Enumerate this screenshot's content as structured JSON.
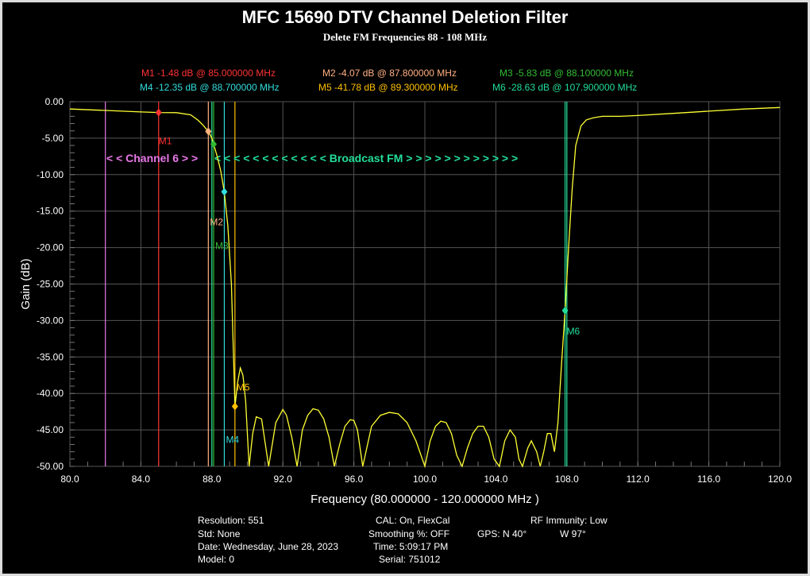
{
  "title": "MFC 15690 DTV Channel Deletion Filter",
  "subtitle": "Delete FM Frequencies 88 - 108 MHz",
  "colors": {
    "background": "#000000",
    "grid": "#555555",
    "trace": "#ffff33",
    "axis_text": "#ffffff",
    "band_channel6": "#e878e8",
    "band_fm": "#22dd99"
  },
  "marker_readouts": [
    {
      "text": "M1  -1.48 dB @ 85.000000 MHz",
      "color": "#ff3333"
    },
    {
      "text": "M2  -4.07 dB @ 87.800000 MHz",
      "color": "#ffb080"
    },
    {
      "text": "M3  -5.83 dB @ 88.100000 MHz",
      "color": "#33bb33"
    },
    {
      "text": "M4  -12.35 dB @ 88.700000 MHz",
      "color": "#33dddd"
    },
    {
      "text": "M5  -41.78 dB @ 89.300000 MHz",
      "color": "#ffc000"
    },
    {
      "text": "M6  -28.63 dB @ 107.900000 MHz",
      "color": "#22dd99"
    }
  ],
  "band_labels": {
    "channel6": "< < Channel 6 > >",
    "fm": "< < < < < < < < < < < < Broadcast FM > > > > > > > > > > > >"
  },
  "chart_data": {
    "type": "line",
    "title": "MFC 15690 DTV Channel Deletion Filter",
    "subtitle": "Delete FM Frequencies 88 - 108 MHz",
    "xlabel": "Frequency (80.000000 - 120.000000 MHz )",
    "ylabel": "Gain (dB)",
    "xlim": [
      80,
      120
    ],
    "ylim": [
      -50,
      0
    ],
    "x_ticks": [
      "80.0",
      "84.0",
      "88.0",
      "92.0",
      "96.0",
      "100.0",
      "104.0",
      "108.0",
      "112.0",
      "116.0",
      "120.0"
    ],
    "x_tick_values": [
      80,
      84,
      88,
      92,
      96,
      100,
      104,
      108,
      112,
      116,
      120
    ],
    "y_ticks": [
      "0.00",
      "-5.00",
      "-10.00",
      "-15.00",
      "-20.00",
      "-25.00",
      "-30.00",
      "-35.00",
      "-40.00",
      "-45.00",
      "-50.00"
    ],
    "y_tick_values": [
      0,
      -5,
      -10,
      -15,
      -20,
      -25,
      -30,
      -35,
      -40,
      -45,
      -50
    ],
    "grid": true,
    "series": [
      {
        "x": [
          80.0,
          82.0,
          84.0,
          85.0,
          86.0,
          86.8,
          87.2,
          87.5,
          87.8,
          88.0,
          88.1,
          88.3,
          88.5,
          88.7,
          88.9,
          89.1,
          89.3,
          89.45,
          89.6,
          89.75,
          89.9,
          90.1,
          90.3,
          90.5,
          90.8,
          91.2,
          91.6,
          92.0,
          92.2,
          92.5,
          92.8,
          93.1,
          93.4,
          93.7,
          94.0,
          94.3,
          94.6,
          94.9,
          95.2,
          95.5,
          95.8,
          96.0,
          96.2,
          96.5,
          97.0,
          97.5,
          98.0,
          98.5,
          99.0,
          99.5,
          100.0,
          100.3,
          100.6,
          100.9,
          101.2,
          101.5,
          101.8,
          102.1,
          102.4,
          102.7,
          103.0,
          103.3,
          103.6,
          103.9,
          104.2,
          104.5,
          104.8,
          105.1,
          105.3,
          105.5,
          105.8,
          106.0,
          106.3,
          106.5,
          106.7,
          106.9,
          107.1,
          107.3,
          107.5,
          107.7,
          107.9,
          108.1,
          108.3,
          108.5,
          108.8,
          109.1,
          109.5,
          110.0,
          111.0,
          112.0,
          114.0,
          116.0,
          118.0,
          120.0
        ],
        "y": [
          -1.0,
          -1.2,
          -1.4,
          -1.48,
          -1.5,
          -1.8,
          -2.5,
          -3.2,
          -4.07,
          -5.0,
          -5.83,
          -7.5,
          -9.5,
          -12.35,
          -17.0,
          -25.0,
          -41.78,
          -38.5,
          -36.5,
          -37.5,
          -41.0,
          -50.0,
          -45.5,
          -43.2,
          -43.5,
          -50.0,
          -44.0,
          -42.2,
          -43.0,
          -46.0,
          -50.0,
          -45.0,
          -43.0,
          -42.1,
          -42.3,
          -43.5,
          -46.0,
          -50.0,
          -47.0,
          -44.5,
          -43.6,
          -43.7,
          -45.0,
          -50.0,
          -44.5,
          -43.0,
          -42.6,
          -42.8,
          -44.0,
          -46.5,
          -50.0,
          -46.5,
          -44.5,
          -43.8,
          -44.0,
          -45.5,
          -48.5,
          -50.0,
          -47.5,
          -45.5,
          -44.5,
          -44.5,
          -46.0,
          -49.0,
          -50.0,
          -46.5,
          -45.0,
          -46.0,
          -49.0,
          -50.0,
          -47.5,
          -46.5,
          -48.0,
          -50.0,
          -48.0,
          -45.5,
          -45.5,
          -48.0,
          -44.0,
          -36.0,
          -28.63,
          -20.0,
          -12.0,
          -6.0,
          -3.3,
          -2.5,
          -2.2,
          -2.0,
          -2.0,
          -1.9,
          -1.6,
          -1.3,
          -1.0,
          -0.8
        ],
        "color": "#ffff33"
      }
    ],
    "markers": [
      {
        "name": "M1",
        "x": 85.0,
        "y": -1.48,
        "color": "#ff3333"
      },
      {
        "name": "M2",
        "x": 87.8,
        "y": -4.07,
        "color": "#ffb080"
      },
      {
        "name": "M3",
        "x": 88.1,
        "y": -5.83,
        "color": "#33bb33"
      },
      {
        "name": "M4",
        "x": 88.7,
        "y": -12.35,
        "color": "#33dddd"
      },
      {
        "name": "M5",
        "x": 89.3,
        "y": -41.78,
        "color": "#ffc000"
      },
      {
        "name": "M6",
        "x": 107.9,
        "y": -28.63,
        "color": "#22dd99"
      }
    ],
    "vertical_lines": [
      {
        "x": 82.0,
        "color": "#e878e8"
      },
      {
        "x": 88.0,
        "color": "#22dd99"
      },
      {
        "x": 108.0,
        "color": "#22dd99"
      }
    ]
  },
  "footer": {
    "col1": [
      "Resolution: 551",
      "Std: None",
      "Date: Wednesday, June 28, 2023",
      "Model: 0"
    ],
    "col2": [
      "CAL: On, FlexCal",
      "Smoothing %:  OFF",
      "Time: 5:09:17 PM",
      "Serial: 751012"
    ],
    "col3": [
      "RF Immunity: Low"
    ],
    "gps_lat": "GPS: N 40°",
    "gps_lon": "W 97°"
  }
}
